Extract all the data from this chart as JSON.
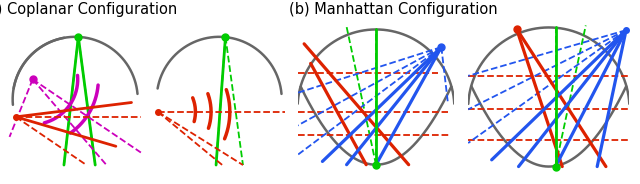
{
  "title_a": "(a) Coplanar Configuration",
  "title_b": "(b) Manhattan Configuration",
  "bg_color": "#ffffff",
  "gray": "#666666",
  "green": "#00cc00",
  "red": "#dd2200",
  "magenta": "#cc00bb",
  "blue": "#2255ee"
}
